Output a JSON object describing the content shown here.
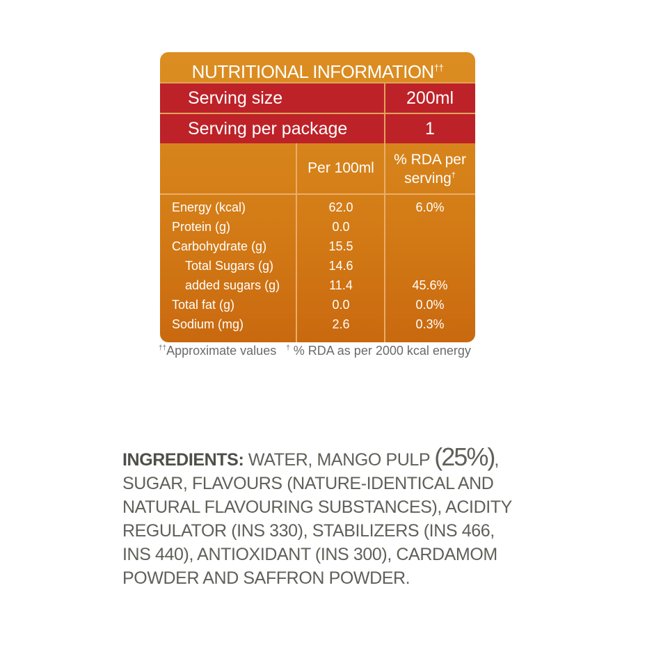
{
  "nutrition": {
    "title": "NUTRITIONAL INFORMATION",
    "title_mark": "††",
    "serving": [
      {
        "label": "Serving size",
        "value": "200ml"
      },
      {
        "label": "Serving per package",
        "value": "1"
      }
    ],
    "columns": {
      "per": "Per 100ml",
      "rda": "% RDA per serving",
      "rda_mark": "†"
    },
    "rows": [
      {
        "name": "Energy (kcal)",
        "per": "62.0",
        "rda": "6.0%",
        "indent": false
      },
      {
        "name": "Protein (g)",
        "per": "0.0",
        "rda": null,
        "indent": false
      },
      {
        "name": "Carbohydrate (g)",
        "per": "15.5",
        "rda": null,
        "indent": false
      },
      {
        "name": "Total Sugars (g)",
        "per": "14.6",
        "rda": null,
        "indent": true
      },
      {
        "name": "added sugars (g)",
        "per": "11.4",
        "rda": "45.6%",
        "indent": true
      },
      {
        "name": "Total fat (g)",
        "per": "0.0",
        "rda": "0.0%",
        "indent": false
      },
      {
        "name": "Sodium (mg)",
        "per": "2.6",
        "rda": "0.3%",
        "indent": false
      }
    ],
    "footnotes": [
      {
        "mark": "††",
        "text": "Approximate values"
      },
      {
        "mark": "†",
        "text": " % RDA as per 2000 kcal energy"
      }
    ]
  },
  "ingredients": {
    "label": "INGREDIENTS:",
    "before": " WATER, MANGO PULP ",
    "highlight": "(25%)",
    "after": ", SUGAR, FLAVOURS (NATURE-IDENTICAL AND NATURAL FLAVOURING SUBSTANCES), ACIDITY REGULATOR (INS 330), STABILIZERS (INS 466, INS 440), ANTIOXIDANT (INS 300), CARDAMOM POWDER AND SAFFRON POWDER."
  }
}
